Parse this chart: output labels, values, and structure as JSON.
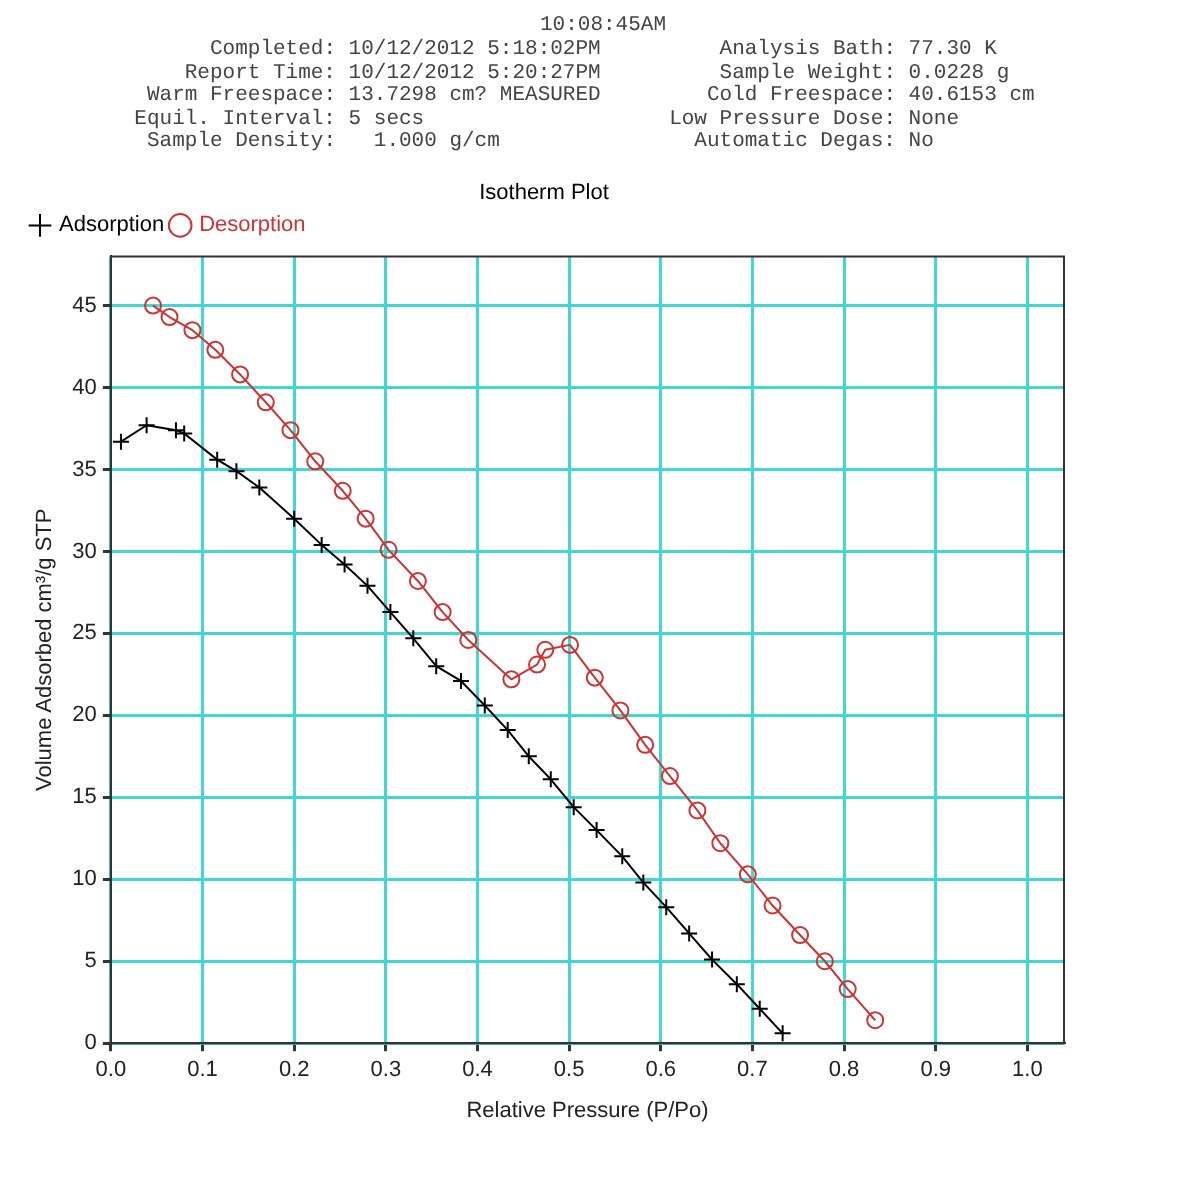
{
  "chart_data": {
    "type": "line",
    "title": "Isotherm Plot",
    "xlabel": "Relative Pressure (P/Po)",
    "ylabel": "Volume Adsorbed cm³/g STP",
    "annotations": [
      "10:08:45AM",
      "Completed: 10/12/2012 5:18:02PM",
      "Analysis Bath: 77.30 K",
      "Report Time: 10/12/2012 5:20:27PM",
      "Sample Weight: 0.0228 g",
      "Warm Freespace: 13.7298 cm? MEASURED",
      "Cold Freespace: 40.6153 cm",
      "Equil. Interval: 5 secs",
      "Low Pressure Dose: None",
      "Sample Density:   1.000 g/cm",
      "Automatic Degas: No"
    ],
    "series": [
      {
        "name": "Adsorption",
        "color": "#000000",
        "marker": "cross",
        "x": [
          0.011,
          0.039,
          0.071,
          0.08,
          0.116,
          0.137,
          0.162,
          0.2,
          0.23,
          0.255,
          0.28,
          0.305,
          0.33,
          0.355,
          0.382,
          0.408,
          0.433,
          0.456,
          0.48,
          0.505,
          0.53,
          0.558,
          0.581,
          0.606,
          0.631,
          0.656,
          0.683,
          0.708,
          0.733
        ],
        "values": [
          36.7,
          37.7,
          37.4,
          37.2,
          35.6,
          34.9,
          33.9,
          32.0,
          30.4,
          29.2,
          27.9,
          26.3,
          24.7,
          23.0,
          22.1,
          20.6,
          19.1,
          17.5,
          16.1,
          14.4,
          13.0,
          11.4,
          9.8,
          8.3,
          6.7,
          5.1,
          3.6,
          2.1,
          0.6
        ]
      },
      {
        "name": "Desorption",
        "color": "#cc3333",
        "marker": "circle",
        "x": [
          0.046,
          0.064,
          0.089,
          0.114,
          0.141,
          0.169,
          0.196,
          0.223,
          0.253,
          0.278,
          0.303,
          0.335,
          0.362,
          0.39,
          0.437,
          0.465,
          0.474,
          0.501,
          0.528,
          0.556,
          0.583,
          0.61,
          0.64,
          0.665,
          0.695,
          0.722,
          0.752,
          0.779,
          0.804,
          0.834
        ],
        "values": [
          45.0,
          44.3,
          43.5,
          42.3,
          40.8,
          39.1,
          37.4,
          35.5,
          33.7,
          32.0,
          30.1,
          28.2,
          26.3,
          24.6,
          22.2,
          23.1,
          24.0,
          24.3,
          22.3,
          20.3,
          18.2,
          16.3,
          14.2,
          12.2,
          10.3,
          8.4,
          6.6,
          5.0,
          3.3,
          1.4
        ]
      }
    ],
    "xlim": [
      0,
      1.04
    ],
    "xticks": [
      {
        "value": 0,
        "label": "0.0"
      },
      {
        "value": 0.1,
        "label": "0.1"
      },
      {
        "value": 0.2,
        "label": "0.2"
      },
      {
        "value": 0.3,
        "label": "0.3"
      },
      {
        "value": 0.4,
        "label": "0.4"
      },
      {
        "value": 0.5,
        "label": "0.5"
      },
      {
        "value": 0.6,
        "label": "0.6"
      },
      {
        "value": 0.7,
        "label": "0.7"
      },
      {
        "value": 0.8,
        "label": "0.8"
      },
      {
        "value": 0.9,
        "label": "0.9"
      },
      {
        "value": 1.0,
        "label": "1.0"
      }
    ],
    "ylim": [
      0,
      48
    ],
    "yticks": [
      0,
      5,
      10,
      15,
      20,
      25,
      30,
      35,
      40,
      45
    ],
    "grid": true,
    "legend": "top left"
  }
}
